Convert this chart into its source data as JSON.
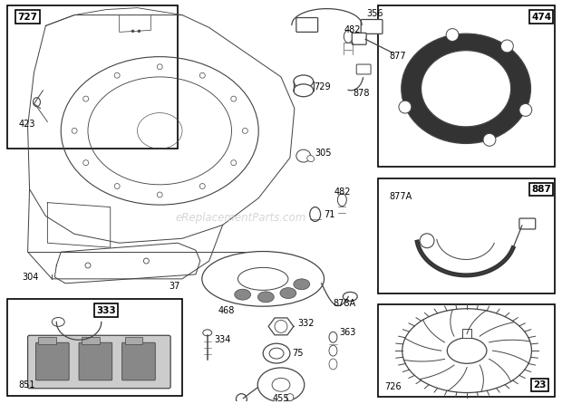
{
  "bg_color": "#ffffff",
  "watermark": "eReplacementParts.com",
  "lw": 0.9,
  "dgray": "#444444",
  "lgray": "#aaaaaa",
  "mgray": "#888888"
}
